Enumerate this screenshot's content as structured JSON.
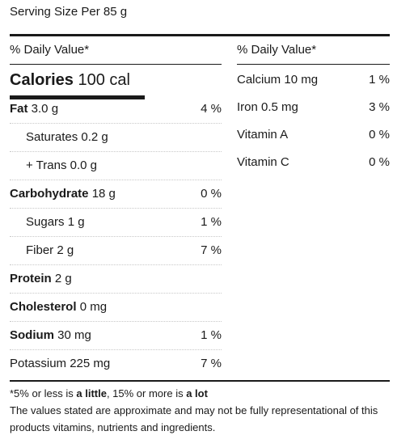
{
  "serving": "Serving Size Per 85 g",
  "daily_value_header": "% Daily Value*",
  "calories": {
    "label": "Calories",
    "value": "100 cal"
  },
  "left_rows": [
    {
      "label": "Fat",
      "amount": "3.0 g",
      "pct": "4 %",
      "bold": true,
      "indent": false
    },
    {
      "label": "Saturates",
      "amount": "0.2 g",
      "pct": "",
      "bold": false,
      "indent": true
    },
    {
      "label": "+ Trans",
      "amount": "0.0 g",
      "pct": "",
      "bold": false,
      "indent": true
    },
    {
      "label": "Carbohydrate",
      "amount": "18 g",
      "pct": "0 %",
      "bold": true,
      "indent": false
    },
    {
      "label": "Sugars",
      "amount": "1 g",
      "pct": "1 %",
      "bold": false,
      "indent": true
    },
    {
      "label": "Fiber",
      "amount": "2 g",
      "pct": "7 %",
      "bold": false,
      "indent": true
    },
    {
      "label": "Protein",
      "amount": "2 g",
      "pct": "",
      "bold": true,
      "indent": false
    },
    {
      "label": "Cholesterol",
      "amount": "0 mg",
      "pct": "",
      "bold": true,
      "indent": false
    },
    {
      "label": "Sodium",
      "amount": "30 mg",
      "pct": "1 %",
      "bold": true,
      "indent": false
    },
    {
      "label": "Potassium",
      "amount": "225 mg",
      "pct": "7 %",
      "bold": false,
      "indent": false
    }
  ],
  "right_rows": [
    {
      "label": "Calcium",
      "amount": "10 mg",
      "pct": "1 %"
    },
    {
      "label": "Iron",
      "amount": "0.5 mg",
      "pct": "3 %"
    },
    {
      "label": "Vitamin A",
      "amount": "",
      "pct": "0 %"
    },
    {
      "label": "Vitamin C",
      "amount": "",
      "pct": "0 %"
    }
  ],
  "footnote": {
    "line1_prefix": "*5% or less is ",
    "line1_little": "a little",
    "line1_mid": ", 15% or more is ",
    "line1_lot": "a lot",
    "line2": "The values stated are approximate and may not be fully representational of this products vitamins, nutrients and ingredients."
  }
}
